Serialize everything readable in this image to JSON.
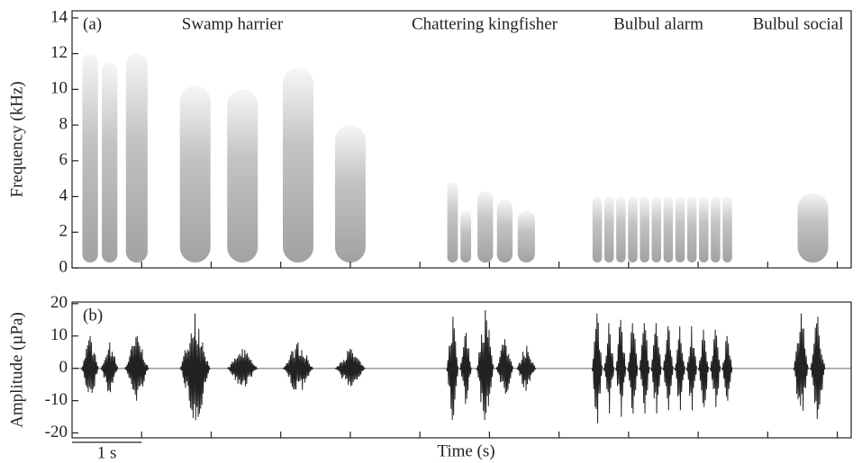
{
  "chart_data": [
    {
      "type": "spectrogram",
      "ylabel": "Frequency (kHz)",
      "panel_label": "(a)",
      "annotations": [
        "Swamp harrier",
        "Chattering kingfisher",
        "Bulbul alarm",
        "Bulbul social"
      ],
      "xlim": [
        0,
        11.2
      ],
      "xticks": [
        1,
        2,
        3,
        4,
        5,
        6,
        7,
        8,
        9,
        10,
        11
      ],
      "ylim": [
        0,
        14.4
      ],
      "yticks": [
        0,
        2,
        4,
        6,
        8,
        10,
        12,
        14
      ],
      "x": [
        0.26,
        0.54,
        0.93,
        1.77,
        2.45,
        3.25,
        4.0,
        5.47,
        5.66,
        5.94,
        6.22,
        6.53,
        7.55,
        7.72,
        7.89,
        8.06,
        8.23,
        8.4,
        8.57,
        8.74,
        8.91,
        9.08,
        9.25,
        9.42,
        10.65
      ],
      "values": [
        12,
        11.5,
        12,
        10.2,
        10,
        11.2,
        8,
        4.8,
        3.2,
        4.3,
        3.8,
        3.2,
        4,
        4,
        4,
        4,
        4,
        4,
        4,
        4,
        4,
        4,
        4,
        4,
        4.2
      ],
      "color": "#555555"
    },
    {
      "type": "waveform",
      "ylabel": "Amplitude (µPa)",
      "panel_label": "(b)",
      "xlabel": "Time (s)",
      "scale_bar": {
        "label": "1 s",
        "length": 1
      },
      "xlim": [
        0,
        11.2
      ],
      "xticks": [
        1,
        2,
        3,
        4,
        5,
        6,
        7,
        8,
        9,
        10,
        11
      ],
      "ylim": [
        -21.5,
        20.5
      ],
      "yticks": [
        -20,
        -10,
        0,
        10,
        20
      ],
      "x": [
        0.26,
        0.54,
        0.93,
        1.77,
        2.45,
        3.25,
        4.0,
        5.47,
        5.66,
        5.94,
        6.22,
        6.53,
        7.55,
        7.72,
        7.89,
        8.06,
        8.23,
        8.4,
        8.57,
        8.74,
        8.91,
        9.08,
        9.25,
        9.42,
        10.48,
        10.72
      ],
      "values": [
        10,
        8,
        10,
        17,
        6,
        8,
        6,
        16,
        11,
        18,
        9,
        7,
        17,
        14,
        15,
        14,
        14,
        14,
        13,
        13,
        13,
        12,
        12,
        10,
        17,
        16
      ],
      "color": "#222222"
    }
  ]
}
